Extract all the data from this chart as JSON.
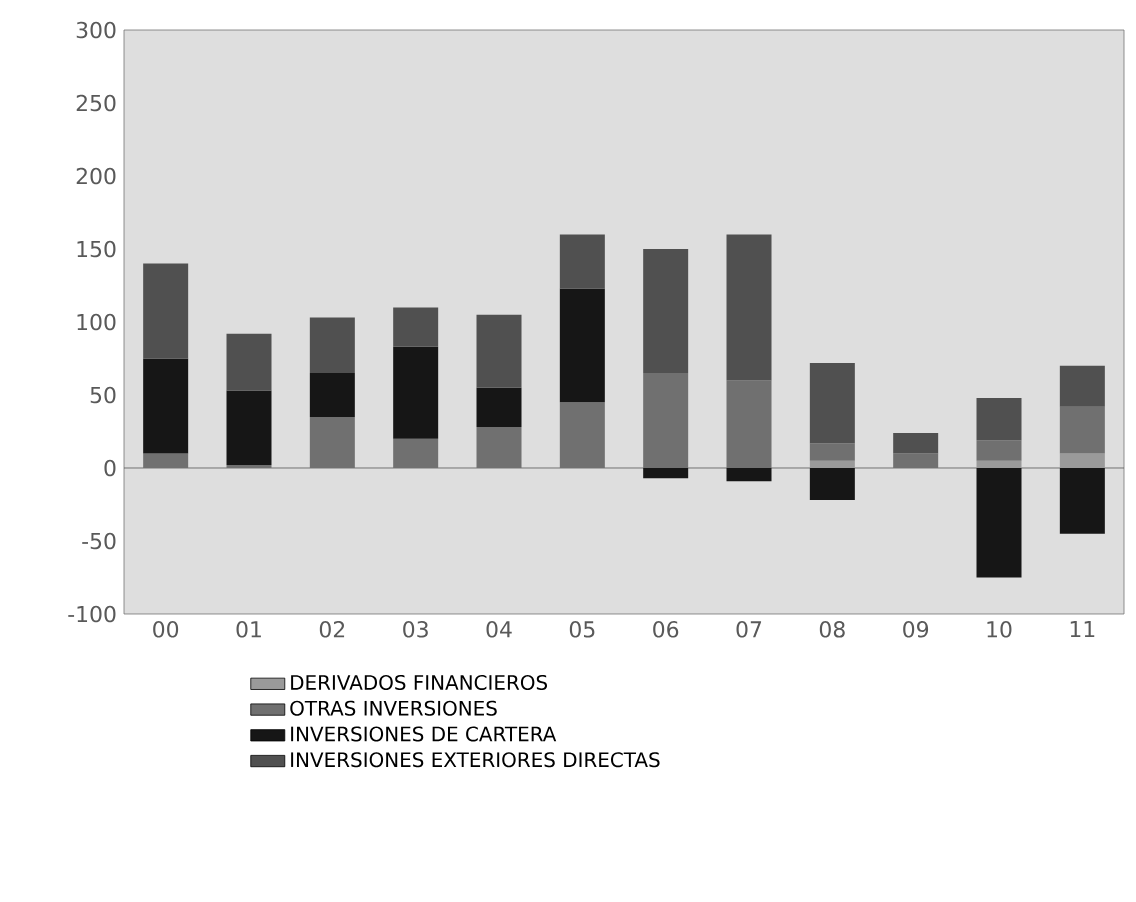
{
  "chart_data": {
    "type": "bar",
    "stacked": true,
    "categories": [
      "00",
      "01",
      "02",
      "03",
      "04",
      "05",
      "06",
      "07",
      "08",
      "09",
      "10",
      "11"
    ],
    "series": [
      {
        "name": "DERIVADOS FINANCIEROS",
        "color": "#9a9a9a",
        "values": [
          0,
          0,
          0,
          0,
          0,
          0,
          0,
          0,
          5,
          0,
          5,
          10
        ]
      },
      {
        "name": "OTRAS INVERSIONES",
        "color": "#707070",
        "values": [
          10,
          2,
          35,
          20,
          28,
          45,
          65,
          60,
          12,
          10,
          14,
          32
        ]
      },
      {
        "name": "INVERSIONES DE CARTERA",
        "color": "#161616",
        "values": [
          65,
          51,
          30,
          63,
          27,
          78,
          -7,
          -9,
          -22,
          0,
          -75,
          -45
        ]
      },
      {
        "name": "INVERSIONES EXTERIORES DIRECTAS",
        "color": "#505050",
        "values": [
          65,
          39,
          38,
          27,
          50,
          37,
          85,
          100,
          55,
          14,
          29,
          28
        ]
      }
    ],
    "ylim": [
      -100,
      300
    ],
    "yticks": [
      -100,
      -50,
      0,
      50,
      100,
      150,
      200,
      250,
      300
    ],
    "ref_lines": [
      {
        "axis": "y",
        "value": 0,
        "color": "#555555"
      }
    ],
    "legend": "bottom"
  }
}
